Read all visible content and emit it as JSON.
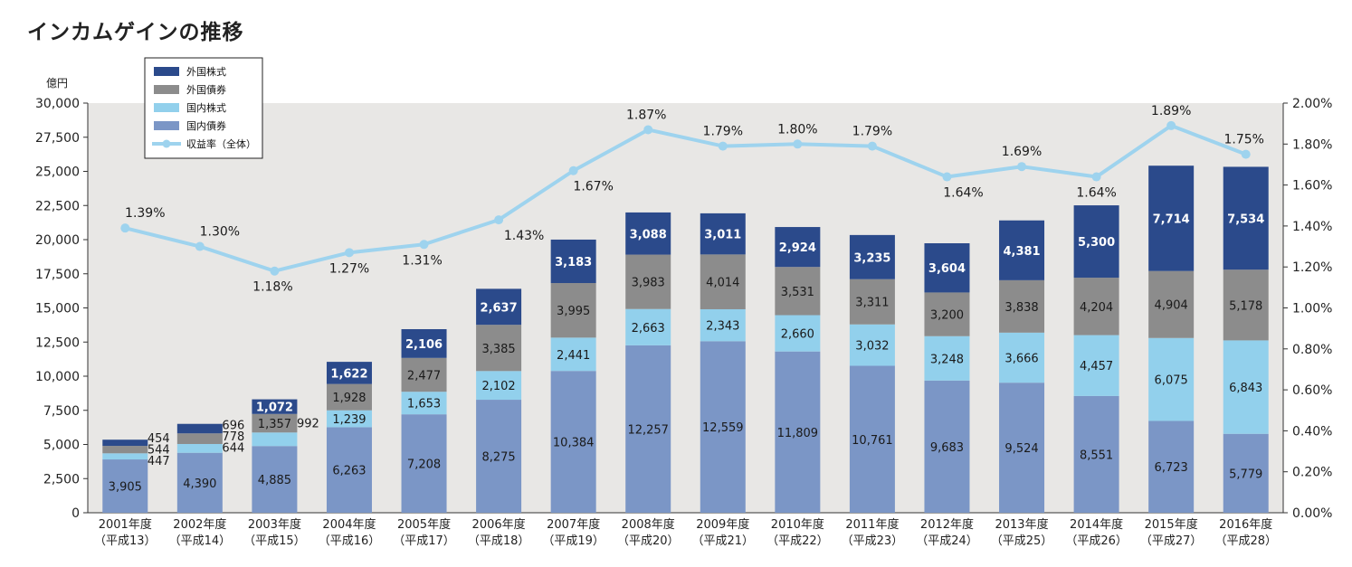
{
  "chart_data": {
    "type": "bar",
    "stacked": true,
    "title": "インカムゲインの推移",
    "ylabel": "億円",
    "ylim": [
      0,
      30000
    ],
    "y_ticks": [
      "0",
      "2,500",
      "5,000",
      "7,500",
      "10,000",
      "12,500",
      "15,000",
      "17,500",
      "20,000",
      "22,500",
      "25,000",
      "27,500",
      "30,000"
    ],
    "y2lim": [
      0,
      2.0
    ],
    "y2_ticks": [
      "0.00%",
      "0.20%",
      "0.40%",
      "0.60%",
      "0.80%",
      "1.00%",
      "1.20%",
      "1.40%",
      "1.60%",
      "1.80%",
      "2.00%"
    ],
    "categories": [
      "2001年度",
      "2002年度",
      "2003年度",
      "2004年度",
      "2005年度",
      "2006年度",
      "2007年度",
      "2008年度",
      "2009年度",
      "2010年度",
      "2011年度",
      "2012年度",
      "2013年度",
      "2014年度",
      "2015年度",
      "2016年度"
    ],
    "categories_sub": [
      "（平成13）",
      "（平成14）",
      "（平成15）",
      "（平成16）",
      "（平成17）",
      "（平成18）",
      "（平成19）",
      "（平成20）",
      "（平成21）",
      "（平成22）",
      "（平成23）",
      "（平成24）",
      "（平成25）",
      "（平成26）",
      "（平成27）",
      "（平成28）"
    ],
    "series": [
      {
        "name": "国内債券",
        "color": "#7b96c6",
        "values": [
          3905,
          4390,
          4885,
          6263,
          7208,
          8275,
          10384,
          12257,
          12559,
          11809,
          10761,
          9683,
          9524,
          8551,
          6723,
          5779
        ],
        "labels": [
          "3,905",
          "4,390",
          "4,885",
          "6,263",
          "7,208",
          "8,275",
          "10,384",
          "12,257",
          "12,559",
          "11,809",
          "10,761",
          "9,683",
          "9,524",
          "8,551",
          "6,723",
          "5,779"
        ]
      },
      {
        "name": "国内株式",
        "color": "#92d0ec",
        "values": [
          447,
          644,
          992,
          1239,
          1653,
          2102,
          2441,
          2663,
          2343,
          2660,
          3032,
          3248,
          3666,
          4457,
          6075,
          6843
        ],
        "labels": [
          "447",
          "644",
          "992",
          "1,239",
          "1,653",
          "2,102",
          "2,441",
          "2,663",
          "2,343",
          "2,660",
          "3,032",
          "3,248",
          "3,666",
          "4,457",
          "6,075",
          "6,843"
        ]
      },
      {
        "name": "外国債券",
        "color": "#8c8c8c",
        "values": [
          544,
          778,
          1357,
          1928,
          2477,
          3385,
          3995,
          3983,
          4014,
          3531,
          3311,
          3200,
          3838,
          4204,
          4904,
          5178
        ],
        "labels": [
          "544",
          "778",
          "1,357",
          "1,928",
          "2,477",
          "3,385",
          "3,995",
          "3,983",
          "4,014",
          "3,531",
          "3,311",
          "3,200",
          "3,838",
          "4,204",
          "4,904",
          "5,178"
        ]
      },
      {
        "name": "外国株式",
        "color": "#2b4a8b",
        "values": [
          454,
          696,
          1072,
          1622,
          2106,
          2637,
          3183,
          3088,
          3011,
          2924,
          3235,
          3604,
          4381,
          5300,
          7714,
          7534
        ],
        "labels": [
          "454",
          "696",
          "1,072",
          "1,622",
          "2,106",
          "2,637",
          "3,183",
          "3,088",
          "3,011",
          "2,924",
          "3,235",
          "3,604",
          "4,381",
          "5,300",
          "7,714",
          "7,534"
        ]
      }
    ],
    "line": {
      "name": "収益率（全体）",
      "color": "#9ed3ee",
      "axis": "right",
      "values": [
        1.39,
        1.3,
        1.18,
        1.27,
        1.31,
        1.43,
        1.67,
        1.87,
        1.79,
        1.8,
        1.79,
        1.64,
        1.69,
        1.64,
        1.89,
        1.75
      ],
      "labels": [
        "1.39%",
        "1.30%",
        "1.18%",
        "1.27%",
        "1.31%",
        "1.43%",
        "1.67%",
        "1.87%",
        "1.79%",
        "1.80%",
        "1.79%",
        "1.64%",
        "1.69%",
        "1.64%",
        "1.89%",
        "1.75%"
      ]
    },
    "legend": {
      "placement": "top-left",
      "items": [
        "外国株式",
        "外国債券",
        "国内株式",
        "国内債券",
        "収益率（全体）"
      ]
    }
  }
}
